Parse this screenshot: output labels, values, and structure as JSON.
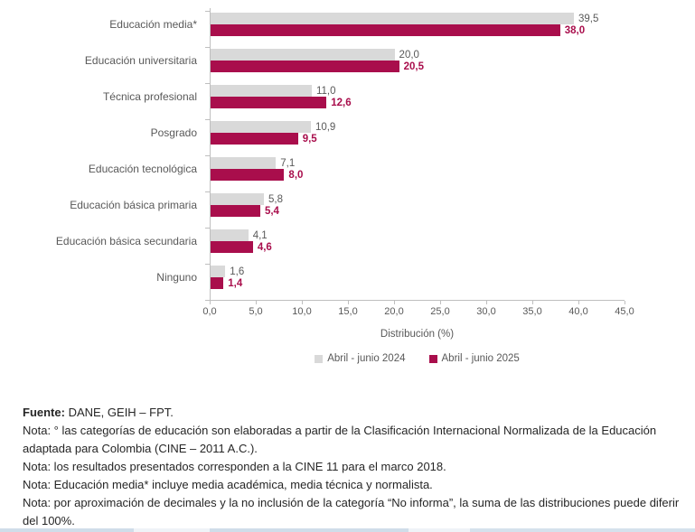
{
  "chart_data": {
    "type": "bar",
    "orientation": "horizontal",
    "title": "",
    "xlabel": "Distribución (%)",
    "ylabel": "",
    "xlim": [
      0,
      45
    ],
    "xticks": [
      "0,0",
      "5,0",
      "10,0",
      "15,0",
      "20,0",
      "25,0",
      "30,0",
      "35,0",
      "40,0",
      "45,0"
    ],
    "grid": false,
    "legend_position": "bottom",
    "categories": [
      "Educación media*",
      "Educación universitaria",
      "Técnica profesional",
      "Posgrado",
      "Educación tecnológica",
      "Educación básica primaria",
      "Educación básica secundaria",
      "Ninguno"
    ],
    "series": [
      {
        "key": "2024",
        "name": "Abril - junio 2024",
        "color": "#D9D9D9",
        "label_color": "#595959",
        "label_bold": false,
        "values": [
          39.5,
          20.0,
          11.0,
          10.9,
          7.1,
          5.8,
          4.1,
          1.6
        ],
        "labels": [
          "39,5",
          "20,0",
          "11,0",
          "10,9",
          "7,1",
          "5,8",
          "4,1",
          "1,6"
        ]
      },
      {
        "key": "2025",
        "name": "Abril - junio 2025",
        "color": "#A90E4C",
        "label_color": "#A90E4C",
        "label_bold": true,
        "values": [
          38.0,
          20.5,
          12.6,
          9.5,
          8.0,
          5.4,
          4.6,
          1.4
        ],
        "labels": [
          "38,0",
          "20,5",
          "12,6",
          "9,5",
          "8,0",
          "5,4",
          "4,6",
          "1,4"
        ]
      }
    ]
  },
  "colors": {
    "axis": "#BFBFBF",
    "category_label": "#595959",
    "notes_text": "#262626",
    "series_2024": "#D9D9D9",
    "series_2025": "#A90E4C"
  },
  "notes": {
    "source_label": "Fuente:",
    "source_text": " DANE, GEIH – FPT.",
    "items": [
      "Nota: ° las categorías de educación son elaboradas a partir de la Clasificación Internacional Normalizada de la Educación adaptada para Colombia (CINE – 2011 A.C.).",
      "Nota: los resultados presentados corresponden a la CINE 11 para el marco 2018.",
      "Nota: Educación media* incluye media académica, media técnica y normalista.",
      "Nota: por aproximación de decimales y la no inclusión de la categoría “No informa”, la suma de las distribuciones puede diferir del 100%."
    ]
  }
}
